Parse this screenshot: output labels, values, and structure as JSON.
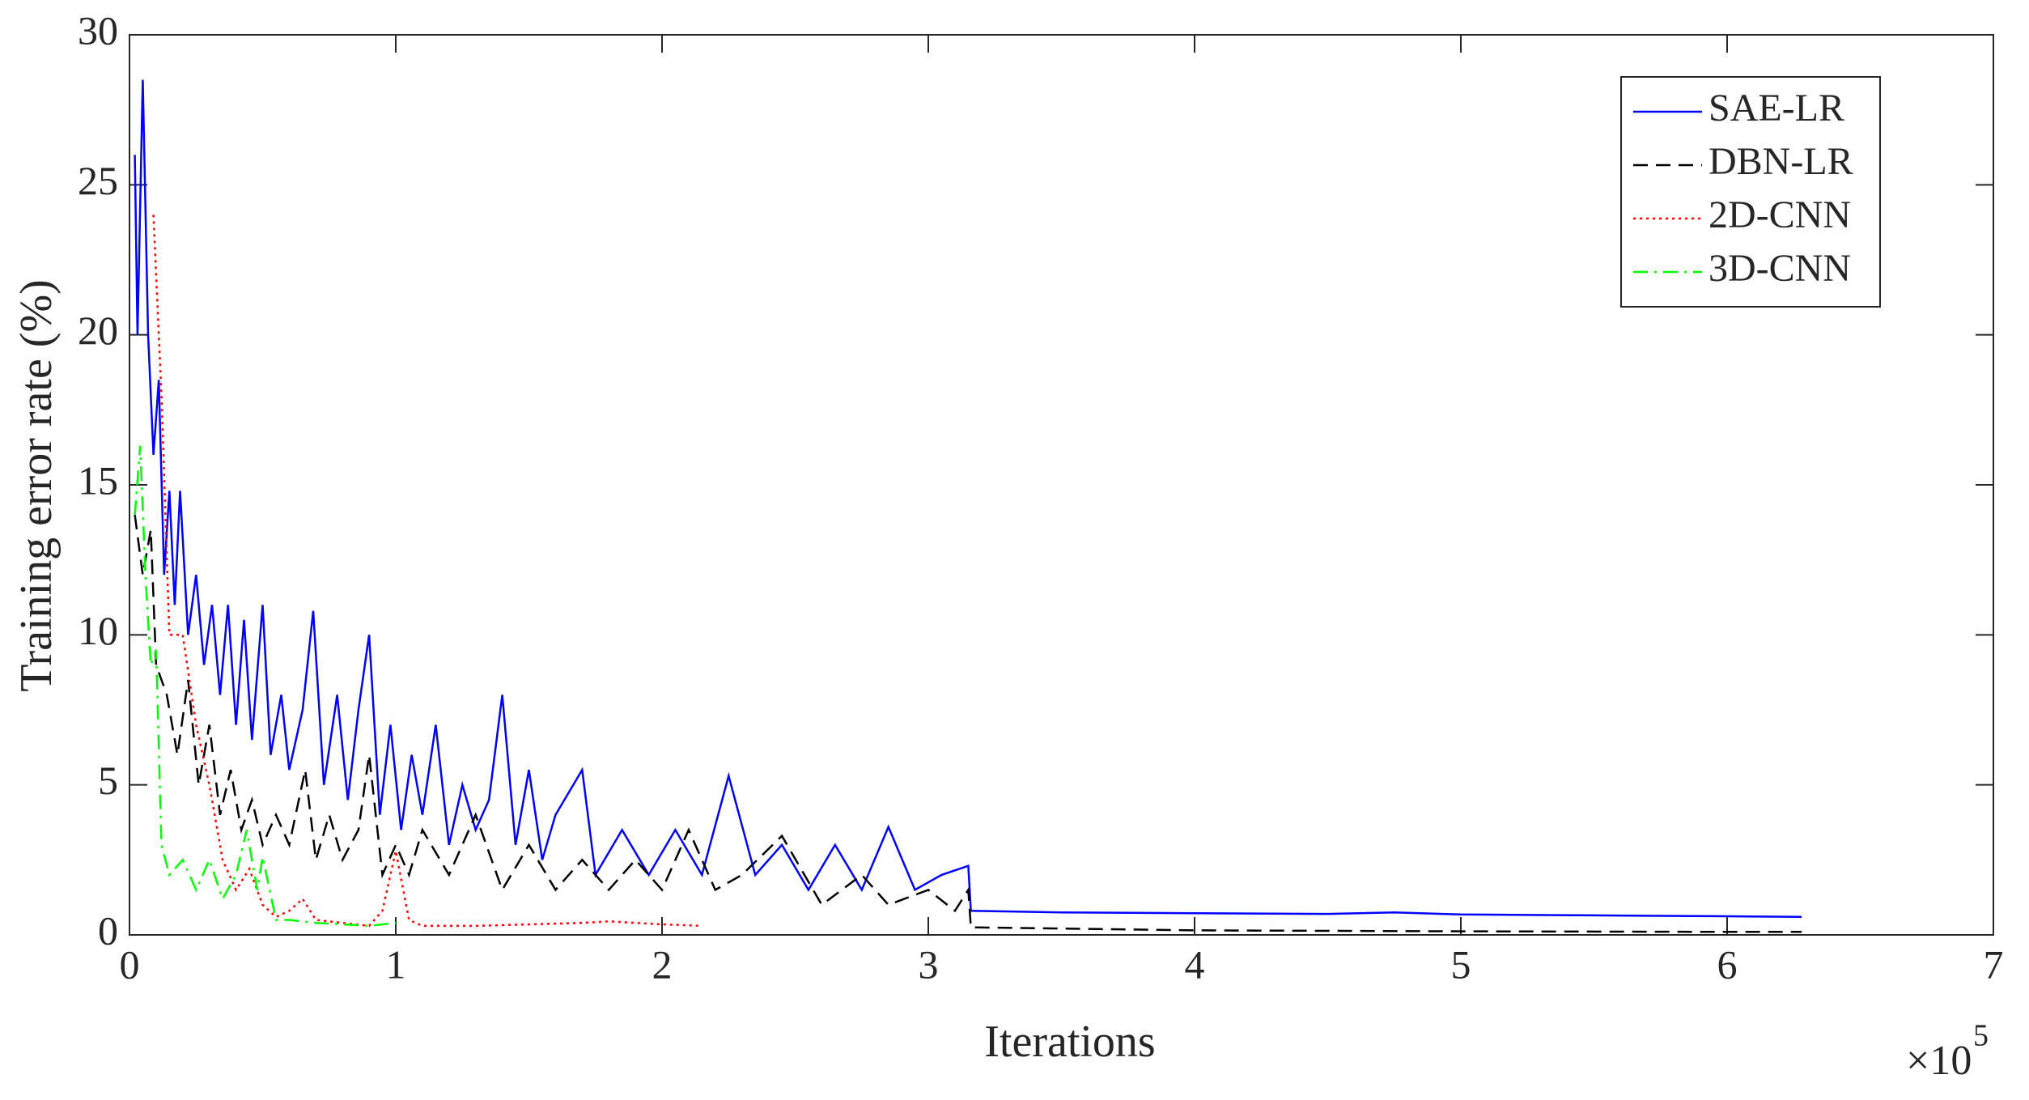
{
  "chart_data": {
    "type": "line",
    "x_label": "Iterations",
    "y_label": "Training error rate (%)",
    "x_multiplier_base": "×10",
    "x_multiplier_exponent": "5",
    "xlim": [
      0,
      7
    ],
    "xticks": [
      0,
      1,
      2,
      3,
      4,
      5,
      6,
      7
    ],
    "ylim": [
      0,
      30
    ],
    "yticks": [
      0,
      5,
      10,
      15,
      20,
      25,
      30
    ],
    "grid": false,
    "legend_location": "northeast",
    "series": [
      {
        "name": "SAE-LR",
        "color": "#0000ff",
        "line_style": "solid",
        "x": [
          0.02,
          0.03,
          0.05,
          0.07,
          0.09,
          0.11,
          0.13,
          0.15,
          0.17,
          0.19,
          0.22,
          0.25,
          0.28,
          0.31,
          0.34,
          0.37,
          0.4,
          0.43,
          0.46,
          0.5,
          0.53,
          0.57,
          0.6,
          0.65,
          0.69,
          0.73,
          0.78,
          0.82,
          0.86,
          0.9,
          0.94,
          0.98,
          1.02,
          1.06,
          1.1,
          1.15,
          1.2,
          1.25,
          1.3,
          1.35,
          1.4,
          1.45,
          1.5,
          1.55,
          1.6,
          1.7,
          1.75,
          1.85,
          1.95,
          2.05,
          2.15,
          2.25,
          2.35,
          2.45,
          2.55,
          2.65,
          2.75,
          2.85,
          2.95,
          3.05,
          3.15,
          3.16,
          3.5,
          4,
          4.5,
          4.75,
          5,
          5.5,
          6,
          6.28
        ],
        "values": [
          26,
          20,
          28.5,
          20,
          16,
          18.5,
          12,
          14.8,
          11,
          14.8,
          10,
          12,
          9,
          11,
          8,
          11,
          7,
          10.5,
          6.5,
          11,
          6,
          8,
          5.5,
          7.5,
          10.8,
          5,
          8,
          4.5,
          7.5,
          10,
          4,
          7,
          3.5,
          6,
          4,
          7,
          3,
          5,
          3.5,
          4.5,
          8,
          3,
          5.5,
          2.5,
          4,
          5.5,
          2,
          3.5,
          2,
          3.5,
          2,
          5.3,
          2,
          3,
          1.5,
          3,
          1.5,
          3.6,
          1.5,
          2,
          2.3,
          0.8,
          0.75,
          0.72,
          0.7,
          0.75,
          0.68,
          0.65,
          0.62,
          0.6
        ]
      },
      {
        "name": "DBN-LR",
        "color": "#000000",
        "line_style": "dashed",
        "x": [
          0.02,
          0.05,
          0.08,
          0.1,
          0.14,
          0.18,
          0.22,
          0.26,
          0.3,
          0.34,
          0.38,
          0.42,
          0.46,
          0.5,
          0.55,
          0.6,
          0.66,
          0.7,
          0.75,
          0.8,
          0.86,
          0.9,
          0.95,
          1.0,
          1.05,
          1.1,
          1.2,
          1.3,
          1.4,
          1.5,
          1.6,
          1.7,
          1.8,
          1.9,
          2.0,
          2.1,
          2.2,
          2.3,
          2.45,
          2.6,
          2.75,
          2.85,
          3.0,
          3.1,
          3.15,
          3.16,
          4,
          5,
          6,
          6.28
        ],
        "values": [
          14,
          12,
          13.5,
          9,
          8,
          6,
          8.5,
          5,
          7,
          4,
          5.5,
          3.5,
          4.5,
          3,
          4,
          3,
          5.5,
          2.5,
          4,
          2.5,
          3.5,
          6,
          2,
          3,
          2,
          3.5,
          2,
          4,
          1.5,
          3,
          1.5,
          2.5,
          1.5,
          2.5,
          1.5,
          3.5,
          1.5,
          2,
          3.3,
          1,
          2,
          1,
          1.5,
          0.8,
          1.5,
          0.25,
          0.15,
          0.12,
          0.1,
          0.1
        ]
      },
      {
        "name": "2D-CNN",
        "color": "#ff0000",
        "line_style": "dotted",
        "x": [
          0.09,
          0.12,
          0.15,
          0.2,
          0.25,
          0.3,
          0.35,
          0.4,
          0.45,
          0.5,
          0.55,
          0.6,
          0.65,
          0.7,
          0.8,
          0.9,
          0.95,
          1.0,
          1.05,
          1.1,
          1.3,
          1.5,
          1.7,
          1.8,
          2.0,
          2.15
        ],
        "values": [
          24,
          18,
          10,
          10,
          7,
          5,
          2.5,
          1.5,
          2.2,
          1,
          0.6,
          0.8,
          1.2,
          0.5,
          0.4,
          0.3,
          0.8,
          2.8,
          0.5,
          0.3,
          0.3,
          0.35,
          0.4,
          0.45,
          0.35,
          0.3
        ]
      },
      {
        "name": "3D-CNN",
        "color": "#00ff00",
        "line_style": "dashdot",
        "x": [
          0.02,
          0.04,
          0.06,
          0.08,
          0.1,
          0.12,
          0.15,
          0.2,
          0.25,
          0.3,
          0.35,
          0.4,
          0.44,
          0.48,
          0.5,
          0.55,
          0.6,
          0.7,
          0.8,
          0.9,
          1.0
        ],
        "values": [
          14,
          16.3,
          12,
          9,
          9.5,
          3,
          2,
          2.5,
          1.5,
          2.5,
          1.2,
          2,
          3.5,
          1.5,
          2.6,
          0.5,
          0.5,
          0.4,
          0.35,
          0.3,
          0.4
        ]
      }
    ]
  }
}
